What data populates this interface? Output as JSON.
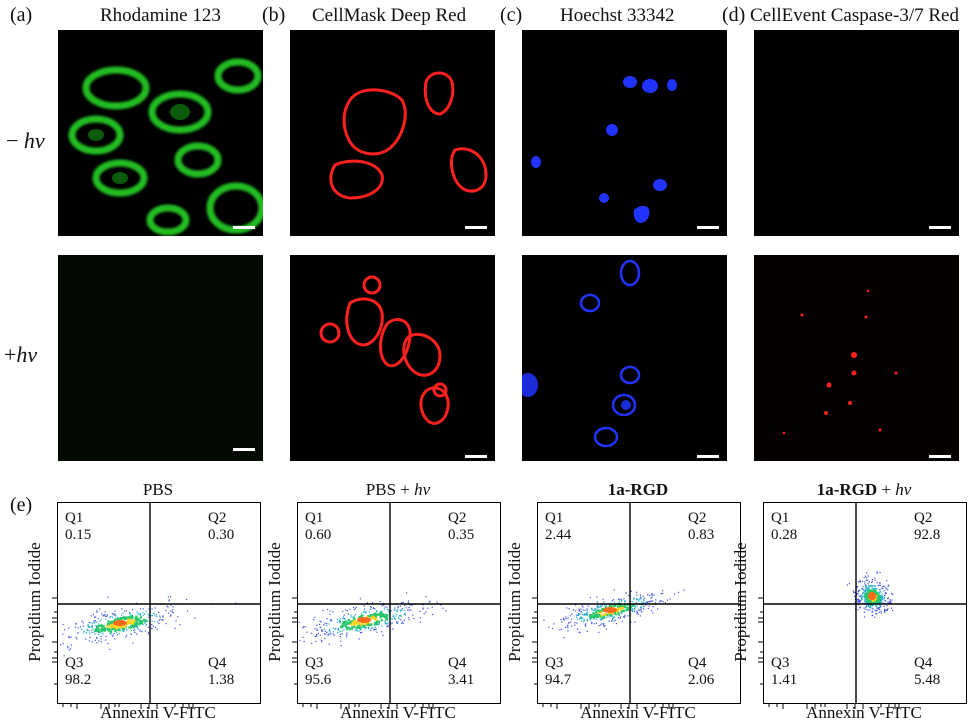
{
  "panels": [
    {
      "letter": "(a)",
      "title": "Rhodamine 123",
      "color": "#1fd11f"
    },
    {
      "letter": "(b)",
      "title": "CellMask Deep Red",
      "color": "#ff1a1a"
    },
    {
      "letter": "(c)",
      "title": "Hoechst 33342",
      "color": "#1a2cff"
    },
    {
      "letter": "(d)",
      "title": "CellEvent Caspase-3/7 Red",
      "color": "#ff1a1a"
    }
  ],
  "rows": [
    {
      "prefix": "−",
      "label": "hv"
    },
    {
      "prefix": "+",
      "label": "hv"
    }
  ],
  "flow": {
    "letter": "(e)",
    "xlabel": "Annexin V-FITC",
    "ylabel": "Propidium Iodide",
    "plots": [
      {
        "title_bold": "",
        "title": "PBS",
        "title_italic": "",
        "q1": "0.15",
        "q2": "0.30",
        "q3": "98.2",
        "q4": "1.38"
      },
      {
        "title_bold": "",
        "title": "PBS + ",
        "title_italic": "hv",
        "q1": "0.60",
        "q2": "0.35",
        "q3": "95.6",
        "q4": "3.41"
      },
      {
        "title_bold": "1a-RGD",
        "title": "",
        "title_italic": "",
        "q1": "2.44",
        "q2": "0.83",
        "q3": "94.7",
        "q4": "2.06"
      },
      {
        "title_bold": "1a-RGD",
        "title": " + ",
        "title_italic": "hv",
        "q1": "0.28",
        "q2": "92.8",
        "q3": "1.41",
        "q4": "5.48"
      }
    ],
    "quadrant_names": [
      "Q1",
      "Q2",
      "Q3",
      "Q4"
    ]
  }
}
